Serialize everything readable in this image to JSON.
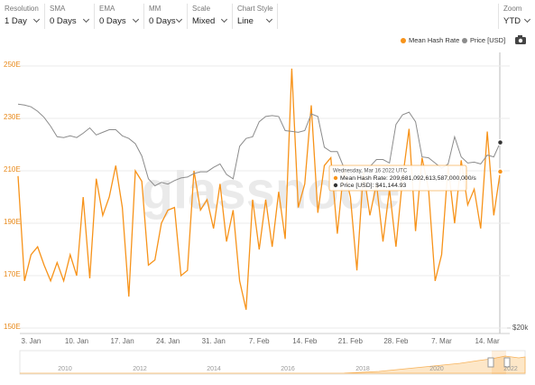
{
  "controls": [
    {
      "label": "Resolution",
      "value": "1 Day"
    },
    {
      "label": "SMA",
      "value": "0 Days"
    },
    {
      "label": "EMA",
      "value": "0 Days"
    },
    {
      "label": "MM",
      "value": "0 Days"
    },
    {
      "label": "Scale",
      "value": "Mixed"
    },
    {
      "label": "Chart Style",
      "value": "Line"
    }
  ],
  "zoom": {
    "label": "Zoom",
    "value": "YTD"
  },
  "watermark": "glassnode",
  "tooltip": {
    "date": "Wednesday, Mar 16 2022 UTC",
    "rows": [
      "Mean Hash Rate: 209,681,092,613,587,000,000/s",
      "Price [USD]: $41,144.93"
    ]
  },
  "navigator": {
    "labels": [
      "2010",
      "2012",
      "2014",
      "2016",
      "2018",
      "2020",
      "2022"
    ]
  },
  "chart_data": {
    "type": "line",
    "categories": [
      null,
      null,
      "3. Jan",
      null,
      null,
      null,
      null,
      null,
      null,
      "10. Jan",
      null,
      null,
      null,
      null,
      null,
      null,
      "17. Jan",
      null,
      null,
      null,
      null,
      null,
      null,
      "24. Jan",
      null,
      null,
      null,
      null,
      null,
      null,
      "31. Jan",
      null,
      null,
      null,
      null,
      null,
      null,
      "7. Feb",
      null,
      null,
      null,
      null,
      null,
      null,
      "14. Feb",
      null,
      null,
      null,
      null,
      null,
      null,
      "21. Feb",
      null,
      null,
      null,
      null,
      null,
      null,
      "28. Feb",
      null,
      null,
      null,
      null,
      null,
      null,
      "7. Mar",
      null,
      null,
      null,
      null,
      null,
      null,
      "14. Mar",
      null,
      null
    ],
    "series": [
      {
        "name": "Mean Hash Rate",
        "color": "#f7931a",
        "values": [
          208,
          168,
          178,
          181,
          174,
          168,
          175,
          168,
          178,
          170,
          200,
          169,
          207,
          193,
          200,
          212,
          196,
          162,
          210,
          206,
          174,
          176,
          190,
          195,
          196,
          170,
          172,
          210,
          195,
          199,
          188,
          205,
          183,
          195,
          168,
          157,
          199,
          180,
          199,
          181,
          202,
          184,
          249,
          196,
          205,
          235,
          194,
          212,
          215,
          186,
          211,
          200,
          172,
          210,
          193,
          205,
          183,
          203,
          181,
          207,
          226,
          187,
          215,
          203,
          168,
          178,
          212,
          190,
          214,
          197,
          203,
          188,
          225,
          193,
          209.681092613587
        ]
      },
      {
        "name": "Price [USD]",
        "color": "#8c8c8c",
        "axis": "y2",
        "values": [
          45500,
          45400,
          45200,
          44700,
          44000,
          43000,
          41800,
          41700,
          41900,
          41700,
          42200,
          42800,
          42000,
          42300,
          42600,
          42600,
          41900,
          41600,
          41000,
          39600,
          37000,
          36200,
          36600,
          36400,
          36800,
          37100,
          37200,
          37600,
          37800,
          37800,
          38300,
          38700,
          37500,
          37000,
          40700,
          41600,
          41800,
          43500,
          44100,
          44200,
          44100,
          42500,
          42400,
          42300,
          42500,
          44400,
          44100,
          40600,
          40100,
          40100,
          38300,
          37200,
          38100,
          37600,
          38400,
          39200,
          39200,
          38800,
          43200,
          44300,
          44600,
          43500,
          39500,
          39400,
          38800,
          38200,
          38700,
          41800,
          39500,
          38800,
          38900,
          38700,
          39700,
          39500,
          41144.93
        ]
      }
    ],
    "ylim": [
      148,
      255
    ],
    "yticks": [
      {
        "value": 150,
        "label": "150E"
      },
      {
        "value": 170,
        "label": "170E"
      },
      {
        "value": 190,
        "label": "190E"
      },
      {
        "value": 210,
        "label": "210E"
      },
      {
        "value": 230,
        "label": "230E"
      },
      {
        "value": 250,
        "label": "250E"
      }
    ],
    "y2lim": [
      19400,
      51350
    ],
    "y2ticks": [
      {
        "value": 20000,
        "label": "$20k"
      }
    ],
    "grid": true
  }
}
